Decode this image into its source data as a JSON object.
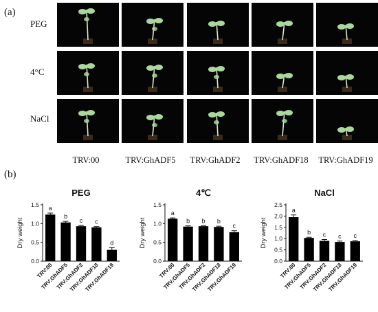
{
  "panel_a": {
    "label": "(a)",
    "rows": [
      "PEG",
      "4°C",
      "NaCl"
    ],
    "columns": [
      "TRV:00",
      "TRV:GhADF5",
      "TRV:GhADF2",
      "TRV:GhADF18",
      "TRV:GhADF19"
    ]
  },
  "panel_b": {
    "label": "(b)"
  },
  "colors": {
    "bar": "#000000",
    "photo_background": "#050505",
    "plant": "#a8d89a"
  },
  "chart_data": [
    {
      "type": "bar",
      "title": "PEG",
      "ylabel": "Dry weight",
      "categories": [
        "TRV:00",
        "TRV:GhADF5",
        "TRV:GhADF2",
        "TRV:GhADF18",
        "TRV:GhADF19"
      ],
      "values": [
        1.24,
        1.03,
        0.93,
        0.9,
        0.3
      ],
      "errors": [
        0.04,
        0.03,
        0.02,
        0.02,
        0.06
      ],
      "letters": [
        "a",
        "b",
        "c",
        "c",
        "d"
      ],
      "ylim": [
        0,
        1.5
      ],
      "yticks": [
        "0.0",
        "0.5",
        "1.0",
        "1.5"
      ]
    },
    {
      "type": "bar",
      "title": "4℃",
      "ylabel": "Dry weight",
      "categories": [
        "TRV:00",
        "TRV:GhADF5",
        "TRV:GhADF2",
        "TRV:GhADF18",
        "TRV:GhADF19"
      ],
      "values": [
        1.13,
        0.92,
        0.93,
        0.91,
        0.77
      ],
      "errors": [
        0.02,
        0.02,
        0.01,
        0.02,
        0.04
      ],
      "letters": [
        "a",
        "b",
        "b",
        "b",
        "c"
      ],
      "ylim": [
        0,
        1.5
      ],
      "yticks": [
        "0.0",
        "0.5",
        "1.0",
        "1.5"
      ]
    },
    {
      "type": "bar",
      "title": "NaCl",
      "ylabel": "Dry weight",
      "categories": [
        "TRV:00",
        "TRV:GhADF5",
        "TRV:GhADF2",
        "TRV:GhADF18",
        "TRV:GhADF19"
      ],
      "values": [
        1.95,
        1.03,
        0.9,
        0.85,
        0.88
      ],
      "errors": [
        0.1,
        0.03,
        0.06,
        0.04,
        0.04
      ],
      "letters": [
        "a",
        "b",
        "c",
        "c",
        "c"
      ],
      "ylim": [
        0,
        2.5
      ],
      "yticks": [
        "0.0",
        "0.5",
        "1.0",
        "1.5",
        "2.0",
        "2.5"
      ]
    }
  ]
}
